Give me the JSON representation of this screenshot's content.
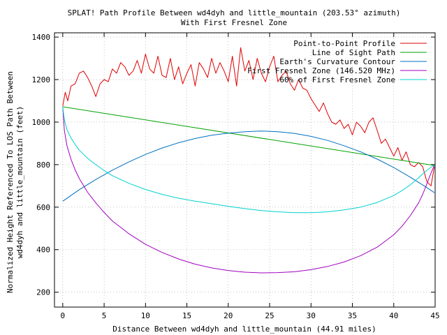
{
  "chart_data": {
    "type": "line",
    "title_lines": [
      "SPLAT! Path Profile Between wd4dyh and little_mountain (203.53° azimuth)",
      "With First Fresnel Zone"
    ],
    "xlabel": "Distance Between wd4dyh and little_mountain (44.91 miles)",
    "ylabel_lines": [
      "Normalized Height Referenced To LOS Path Between",
      "wd4dyh and little_mountain (feet)"
    ],
    "xlim": [
      -1,
      45
    ],
    "ylim": [
      130,
      1420
    ],
    "xticks": [
      0,
      5,
      10,
      15,
      20,
      25,
      30,
      35,
      40,
      45
    ],
    "yticks": [
      200,
      400,
      600,
      800,
      1000,
      1200,
      1400
    ],
    "grid": true,
    "legend_position": "top-right",
    "series": [
      {
        "name": "Point-to-Point Profile",
        "color": "#e00000",
        "x": [
          0,
          0.3,
          0.6,
          1,
          1.5,
          2,
          2.5,
          3,
          3.5,
          4,
          4.5,
          5,
          5.5,
          6,
          6.5,
          7,
          7.5,
          8,
          8.5,
          9,
          9.5,
          10,
          10.5,
          11,
          11.5,
          12,
          12.5,
          13,
          13.5,
          14,
          14.5,
          15,
          15.5,
          16,
          16.5,
          17,
          17.5,
          18,
          18.5,
          19,
          19.5,
          20,
          20.5,
          21,
          21.5,
          22,
          22.5,
          23,
          23.5,
          24,
          24.5,
          25,
          25.5,
          26,
          26.5,
          27,
          27.5,
          28,
          28.5,
          29,
          29.5,
          30,
          30.5,
          31,
          31.5,
          32,
          32.5,
          33,
          33.5,
          34,
          34.5,
          35,
          35.5,
          36,
          36.5,
          37,
          37.5,
          38,
          38.5,
          39,
          39.5,
          40,
          40.5,
          41,
          41.5,
          42,
          42.5,
          43,
          43.5,
          44,
          44.5,
          44.91
        ],
        "values": [
          1075,
          1140,
          1100,
          1170,
          1180,
          1230,
          1240,
          1210,
          1170,
          1120,
          1180,
          1200,
          1190,
          1250,
          1230,
          1280,
          1260,
          1220,
          1240,
          1290,
          1230,
          1320,
          1250,
          1230,
          1310,
          1220,
          1210,
          1300,
          1200,
          1260,
          1180,
          1230,
          1270,
          1170,
          1280,
          1250,
          1210,
          1300,
          1230,
          1280,
          1240,
          1190,
          1310,
          1170,
          1350,
          1240,
          1290,
          1200,
          1300,
          1230,
          1190,
          1260,
          1310,
          1190,
          1220,
          1240,
          1180,
          1150,
          1200,
          1160,
          1150,
          1110,
          1080,
          1050,
          1090,
          1040,
          1000,
          990,
          1010,
          970,
          990,
          940,
          1000,
          980,
          950,
          1000,
          1020,
          960,
          900,
          920,
          880,
          840,
          880,
          820,
          860,
          800,
          790,
          810,
          790,
          720,
          700,
          790
        ]
      },
      {
        "name": "Line of Sight Path",
        "color": "#00a000",
        "x": [
          0,
          44.91
        ],
        "values": [
          1072,
          796
        ]
      },
      {
        "name": "Earth's Curvature Contour",
        "color": "#0070c0",
        "x": [
          0,
          2,
          4,
          6,
          8,
          10,
          12,
          14,
          16,
          18,
          20,
          22,
          24,
          26,
          28,
          30,
          32,
          34,
          36,
          38,
          40,
          42,
          44,
          44.91
        ],
        "values": [
          628,
          682,
          730,
          774,
          813,
          848,
          878,
          903,
          923,
          938,
          948,
          955,
          958,
          955,
          947,
          933,
          914,
          889,
          860,
          826,
          786,
          741,
          692,
          668
        ]
      },
      {
        "name": "First Fresnel Zone (146.520 MHz)",
        "color": "#a000c0",
        "x": [
          0,
          0.2,
          0.5,
          1,
          1.5,
          2,
          3,
          4,
          5,
          6,
          8,
          10,
          12,
          14,
          16,
          18,
          20,
          22,
          24,
          26,
          28,
          30,
          32,
          34,
          36,
          38,
          40,
          41,
          42,
          43,
          43.5,
          44,
          44.3,
          44.6,
          44.91
        ],
        "values": [
          1072,
          960,
          890,
          825,
          775,
          735,
          670,
          620,
          575,
          535,
          475,
          425,
          387,
          356,
          332,
          314,
          302,
          294,
          291,
          292,
          296,
          306,
          321,
          342,
          372,
          412,
          470,
          510,
          560,
          620,
          660,
          710,
          740,
          770,
          796
        ]
      },
      {
        "name": "60% of First Fresnel Zone",
        "color": "#00d0d0",
        "x": [
          0,
          0.2,
          0.5,
          1,
          1.5,
          2,
          3,
          4,
          5,
          6,
          8,
          10,
          12,
          14,
          16,
          18,
          20,
          22,
          24,
          26,
          28,
          30,
          32,
          34,
          36,
          38,
          40,
          41,
          42,
          43,
          43.5,
          44,
          44.3,
          44.6,
          44.91
        ],
        "values": [
          1072,
          1010,
          965,
          925,
          895,
          868,
          830,
          800,
          772,
          748,
          712,
          683,
          660,
          642,
          628,
          616,
          604,
          593,
          584,
          578,
          574,
          574,
          578,
          587,
          600,
          622,
          655,
          678,
          705,
          738,
          756,
          773,
          782,
          790,
          796
        ]
      }
    ]
  }
}
